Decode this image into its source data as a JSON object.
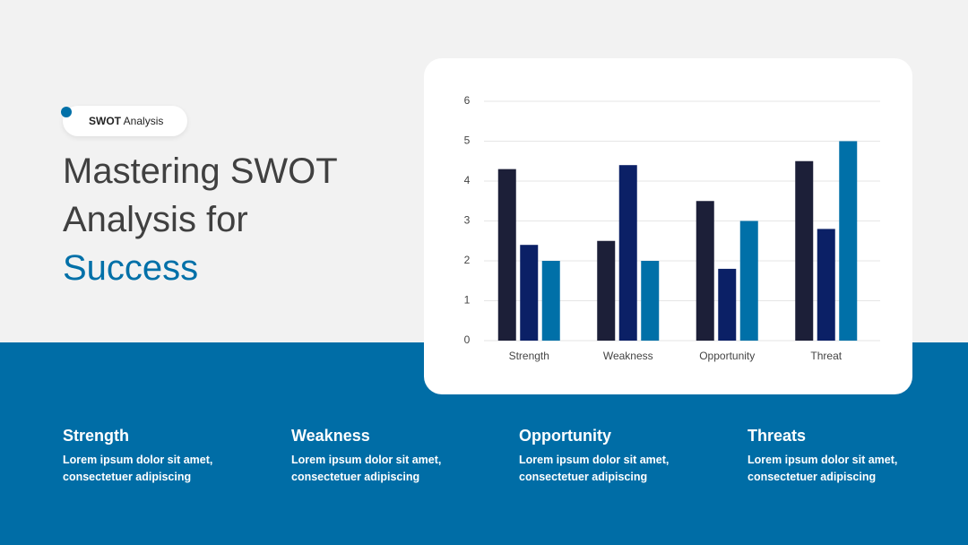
{
  "badge": {
    "bold": "SWOT",
    "text": "Analysis"
  },
  "title": {
    "lines": [
      "Mastering SWOT",
      "Analysis for"
    ],
    "highlight": "Success"
  },
  "chart_data": {
    "type": "bar",
    "categories": [
      "Strength",
      "Weakness",
      "Opportunity",
      "Threat"
    ],
    "series": [
      {
        "color": "#1c1f38",
        "values": [
          4.3,
          2.5,
          3.5,
          4.5
        ]
      },
      {
        "color": "#0b2066",
        "values": [
          2.4,
          4.4,
          1.8,
          2.8
        ]
      },
      {
        "color": "#0070a8",
        "values": [
          2,
          2,
          3,
          5
        ]
      }
    ],
    "ylim": [
      0,
      6
    ],
    "yticks": [
      0,
      1,
      2,
      3,
      4,
      5,
      6
    ],
    "grid": true
  },
  "cards": [
    {
      "heading": "Strength",
      "lines": [
        "Lorem ipsum dolor sit amet,",
        "consectetuer adipiscing"
      ]
    },
    {
      "heading": "Weakness",
      "lines": [
        "Lorem ipsum dolor sit amet,",
        "consectetuer adipiscing"
      ]
    },
    {
      "heading": "Opportunity",
      "lines": [
        "Lorem ipsum dolor sit amet,",
        "consectetuer adipiscing"
      ]
    },
    {
      "heading": "Threats",
      "lines": [
        "Lorem ipsum dolor sit amet,",
        "consectetuer adipiscing"
      ]
    }
  ]
}
